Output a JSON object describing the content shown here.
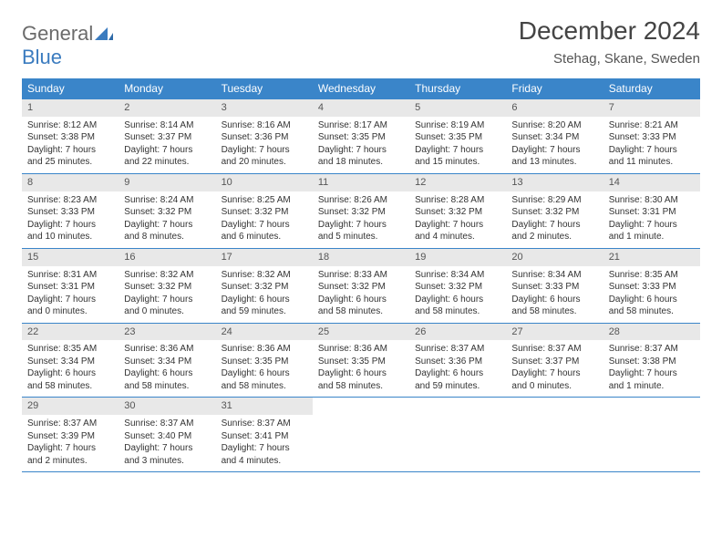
{
  "logo": {
    "word1": "General",
    "word2": "Blue",
    "color1": "#6b6b6b",
    "color2": "#3a7bbf"
  },
  "title": "December 2024",
  "location": "Stehag, Skane, Sweden",
  "colors": {
    "header_bg": "#3a85c9",
    "header_text": "#ffffff",
    "daynum_bg": "#e8e8e8",
    "border": "#3a85c9",
    "body_text": "#333333"
  },
  "weekdays": [
    "Sunday",
    "Monday",
    "Tuesday",
    "Wednesday",
    "Thursday",
    "Friday",
    "Saturday"
  ],
  "weeks": [
    [
      {
        "n": "1",
        "sr": "Sunrise: 8:12 AM",
        "ss": "Sunset: 3:38 PM",
        "d1": "Daylight: 7 hours",
        "d2": "and 25 minutes."
      },
      {
        "n": "2",
        "sr": "Sunrise: 8:14 AM",
        "ss": "Sunset: 3:37 PM",
        "d1": "Daylight: 7 hours",
        "d2": "and 22 minutes."
      },
      {
        "n": "3",
        "sr": "Sunrise: 8:16 AM",
        "ss": "Sunset: 3:36 PM",
        "d1": "Daylight: 7 hours",
        "d2": "and 20 minutes."
      },
      {
        "n": "4",
        "sr": "Sunrise: 8:17 AM",
        "ss": "Sunset: 3:35 PM",
        "d1": "Daylight: 7 hours",
        "d2": "and 18 minutes."
      },
      {
        "n": "5",
        "sr": "Sunrise: 8:19 AM",
        "ss": "Sunset: 3:35 PM",
        "d1": "Daylight: 7 hours",
        "d2": "and 15 minutes."
      },
      {
        "n": "6",
        "sr": "Sunrise: 8:20 AM",
        "ss": "Sunset: 3:34 PM",
        "d1": "Daylight: 7 hours",
        "d2": "and 13 minutes."
      },
      {
        "n": "7",
        "sr": "Sunrise: 8:21 AM",
        "ss": "Sunset: 3:33 PM",
        "d1": "Daylight: 7 hours",
        "d2": "and 11 minutes."
      }
    ],
    [
      {
        "n": "8",
        "sr": "Sunrise: 8:23 AM",
        "ss": "Sunset: 3:33 PM",
        "d1": "Daylight: 7 hours",
        "d2": "and 10 minutes."
      },
      {
        "n": "9",
        "sr": "Sunrise: 8:24 AM",
        "ss": "Sunset: 3:32 PM",
        "d1": "Daylight: 7 hours",
        "d2": "and 8 minutes."
      },
      {
        "n": "10",
        "sr": "Sunrise: 8:25 AM",
        "ss": "Sunset: 3:32 PM",
        "d1": "Daylight: 7 hours",
        "d2": "and 6 minutes."
      },
      {
        "n": "11",
        "sr": "Sunrise: 8:26 AM",
        "ss": "Sunset: 3:32 PM",
        "d1": "Daylight: 7 hours",
        "d2": "and 5 minutes."
      },
      {
        "n": "12",
        "sr": "Sunrise: 8:28 AM",
        "ss": "Sunset: 3:32 PM",
        "d1": "Daylight: 7 hours",
        "d2": "and 4 minutes."
      },
      {
        "n": "13",
        "sr": "Sunrise: 8:29 AM",
        "ss": "Sunset: 3:32 PM",
        "d1": "Daylight: 7 hours",
        "d2": "and 2 minutes."
      },
      {
        "n": "14",
        "sr": "Sunrise: 8:30 AM",
        "ss": "Sunset: 3:31 PM",
        "d1": "Daylight: 7 hours",
        "d2": "and 1 minute."
      }
    ],
    [
      {
        "n": "15",
        "sr": "Sunrise: 8:31 AM",
        "ss": "Sunset: 3:31 PM",
        "d1": "Daylight: 7 hours",
        "d2": "and 0 minutes."
      },
      {
        "n": "16",
        "sr": "Sunrise: 8:32 AM",
        "ss": "Sunset: 3:32 PM",
        "d1": "Daylight: 7 hours",
        "d2": "and 0 minutes."
      },
      {
        "n": "17",
        "sr": "Sunrise: 8:32 AM",
        "ss": "Sunset: 3:32 PM",
        "d1": "Daylight: 6 hours",
        "d2": "and 59 minutes."
      },
      {
        "n": "18",
        "sr": "Sunrise: 8:33 AM",
        "ss": "Sunset: 3:32 PM",
        "d1": "Daylight: 6 hours",
        "d2": "and 58 minutes."
      },
      {
        "n": "19",
        "sr": "Sunrise: 8:34 AM",
        "ss": "Sunset: 3:32 PM",
        "d1": "Daylight: 6 hours",
        "d2": "and 58 minutes."
      },
      {
        "n": "20",
        "sr": "Sunrise: 8:34 AM",
        "ss": "Sunset: 3:33 PM",
        "d1": "Daylight: 6 hours",
        "d2": "and 58 minutes."
      },
      {
        "n": "21",
        "sr": "Sunrise: 8:35 AM",
        "ss": "Sunset: 3:33 PM",
        "d1": "Daylight: 6 hours",
        "d2": "and 58 minutes."
      }
    ],
    [
      {
        "n": "22",
        "sr": "Sunrise: 8:35 AM",
        "ss": "Sunset: 3:34 PM",
        "d1": "Daylight: 6 hours",
        "d2": "and 58 minutes."
      },
      {
        "n": "23",
        "sr": "Sunrise: 8:36 AM",
        "ss": "Sunset: 3:34 PM",
        "d1": "Daylight: 6 hours",
        "d2": "and 58 minutes."
      },
      {
        "n": "24",
        "sr": "Sunrise: 8:36 AM",
        "ss": "Sunset: 3:35 PM",
        "d1": "Daylight: 6 hours",
        "d2": "and 58 minutes."
      },
      {
        "n": "25",
        "sr": "Sunrise: 8:36 AM",
        "ss": "Sunset: 3:35 PM",
        "d1": "Daylight: 6 hours",
        "d2": "and 58 minutes."
      },
      {
        "n": "26",
        "sr": "Sunrise: 8:37 AM",
        "ss": "Sunset: 3:36 PM",
        "d1": "Daylight: 6 hours",
        "d2": "and 59 minutes."
      },
      {
        "n": "27",
        "sr": "Sunrise: 8:37 AM",
        "ss": "Sunset: 3:37 PM",
        "d1": "Daylight: 7 hours",
        "d2": "and 0 minutes."
      },
      {
        "n": "28",
        "sr": "Sunrise: 8:37 AM",
        "ss": "Sunset: 3:38 PM",
        "d1": "Daylight: 7 hours",
        "d2": "and 1 minute."
      }
    ],
    [
      {
        "n": "29",
        "sr": "Sunrise: 8:37 AM",
        "ss": "Sunset: 3:39 PM",
        "d1": "Daylight: 7 hours",
        "d2": "and 2 minutes."
      },
      {
        "n": "30",
        "sr": "Sunrise: 8:37 AM",
        "ss": "Sunset: 3:40 PM",
        "d1": "Daylight: 7 hours",
        "d2": "and 3 minutes."
      },
      {
        "n": "31",
        "sr": "Sunrise: 8:37 AM",
        "ss": "Sunset: 3:41 PM",
        "d1": "Daylight: 7 hours",
        "d2": "and 4 minutes."
      },
      null,
      null,
      null,
      null
    ]
  ]
}
